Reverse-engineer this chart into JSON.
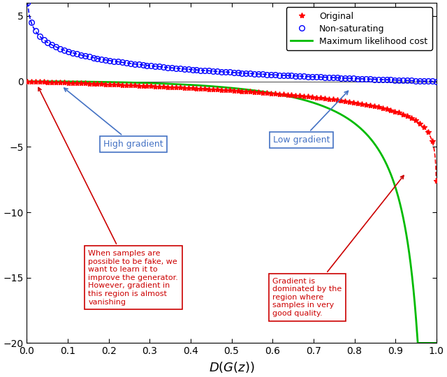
{
  "title": "",
  "xlabel": "$D(G(z))$",
  "ylabel": "",
  "xlim": [
    0,
    1
  ],
  "ylim": [
    -20,
    6
  ],
  "xticks": [
    0,
    0.1,
    0.2,
    0.3,
    0.4,
    0.5,
    0.6,
    0.7,
    0.8,
    0.9,
    1.0
  ],
  "yticks": [
    -20,
    -15,
    -10,
    -5,
    0,
    5
  ],
  "original_color": "#FF0000",
  "nonsaturating_color": "#0000FF",
  "mlcost_color": "#00BB00",
  "legend_labels": [
    "Original",
    "Non-saturating",
    "Maximum likelihood cost"
  ],
  "figsize": [
    6.4,
    5.4
  ],
  "dpi": 100
}
